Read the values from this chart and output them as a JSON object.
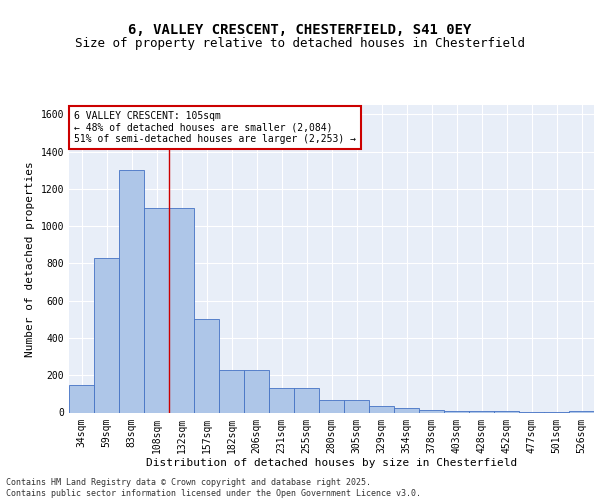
{
  "title_line1": "6, VALLEY CRESCENT, CHESTERFIELD, S41 0EY",
  "title_line2": "Size of property relative to detached houses in Chesterfield",
  "xlabel": "Distribution of detached houses by size in Chesterfield",
  "ylabel": "Number of detached properties",
  "categories": [
    "34sqm",
    "59sqm",
    "83sqm",
    "108sqm",
    "132sqm",
    "157sqm",
    "182sqm",
    "206sqm",
    "231sqm",
    "255sqm",
    "280sqm",
    "305sqm",
    "329sqm",
    "354sqm",
    "378sqm",
    "403sqm",
    "428sqm",
    "452sqm",
    "477sqm",
    "501sqm",
    "526sqm"
  ],
  "values": [
    150,
    830,
    1300,
    1100,
    1100,
    500,
    230,
    230,
    130,
    130,
    65,
    65,
    35,
    25,
    15,
    10,
    10,
    8,
    5,
    5,
    8
  ],
  "bar_color": "#aec6e8",
  "bar_edge_color": "#4472c4",
  "background_color": "#e8eef8",
  "grid_color": "#ffffff",
  "red_line_index": 3,
  "annotation_line1": "6 VALLEY CRESCENT: 105sqm",
  "annotation_line2": "← 48% of detached houses are smaller (2,084)",
  "annotation_line3": "51% of semi-detached houses are larger (2,253) →",
  "annotation_box_color": "#ffffff",
  "annotation_edge_color": "#cc0000",
  "ylim": [
    0,
    1650
  ],
  "yticks": [
    0,
    200,
    400,
    600,
    800,
    1000,
    1200,
    1400,
    1600
  ],
  "footer_text": "Contains HM Land Registry data © Crown copyright and database right 2025.\nContains public sector information licensed under the Open Government Licence v3.0.",
  "title_fontsize": 10,
  "subtitle_fontsize": 9,
  "axis_label_fontsize": 8,
  "tick_fontsize": 7,
  "annotation_fontsize": 7,
  "footer_fontsize": 6
}
